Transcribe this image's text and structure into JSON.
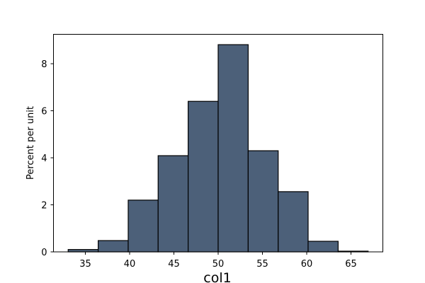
{
  "chart_data": {
    "type": "bar",
    "subtype": "histogram",
    "title": "",
    "xlabel": "col1",
    "ylabel": "Percent per unit",
    "bin_edges": [
      33.06,
      36.45,
      39.84,
      43.22,
      46.61,
      50.0,
      53.39,
      56.78,
      60.16,
      63.55,
      66.94
    ],
    "categories": [
      "33.1-36.4",
      "36.4-39.8",
      "39.8-43.2",
      "43.2-46.6",
      "46.6-50.0",
      "50.0-53.4",
      "53.4-56.8",
      "56.8-60.2",
      "60.2-63.5",
      "63.5-66.9"
    ],
    "values": [
      0.1,
      0.48,
      2.2,
      4.09,
      6.4,
      8.81,
      4.3,
      2.56,
      0.45,
      0.03
    ],
    "xlim": [
      31.4,
      68.6
    ],
    "ylim": [
      0,
      9.25
    ],
    "xticks": [
      35,
      40,
      45,
      50,
      55,
      60,
      65
    ],
    "yticks": [
      0,
      2,
      4,
      6,
      8
    ],
    "grid": false,
    "legend": null,
    "colors": {
      "bar_fill": "#4c6079",
      "bar_edge": "#000000"
    }
  }
}
